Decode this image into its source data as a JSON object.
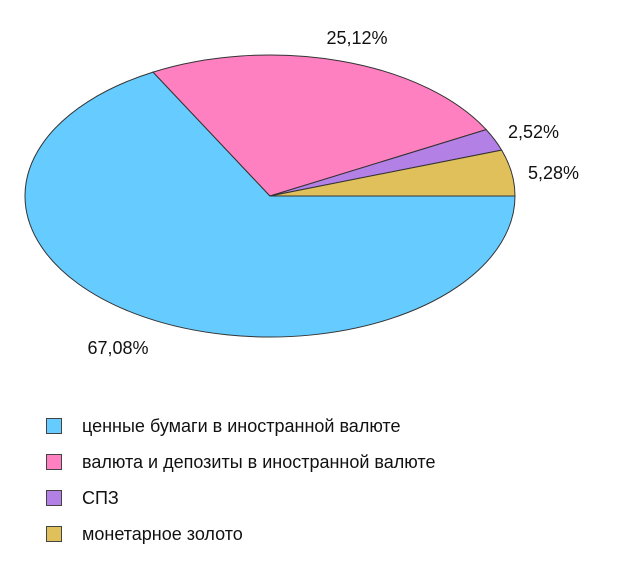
{
  "chart_data": {
    "type": "pie",
    "title": "",
    "slices": [
      {
        "label": "ценные бумаги в иностранной валюте",
        "value": 67.08,
        "value_label": "67,08%",
        "color": "#66ccff"
      },
      {
        "label": "валюта и депозиты в иностранной валюте",
        "value": 25.12,
        "value_label": "25,12%",
        "color": "#ff80c0"
      },
      {
        "label": "СПЗ",
        "value": 2.52,
        "value_label": "2,52%",
        "color": "#b380e6"
      },
      {
        "label": "монетарное золото",
        "value": 5.28,
        "value_label": "5,28%",
        "color": "#dfc05a"
      }
    ],
    "legend_position": "bottom-left"
  }
}
